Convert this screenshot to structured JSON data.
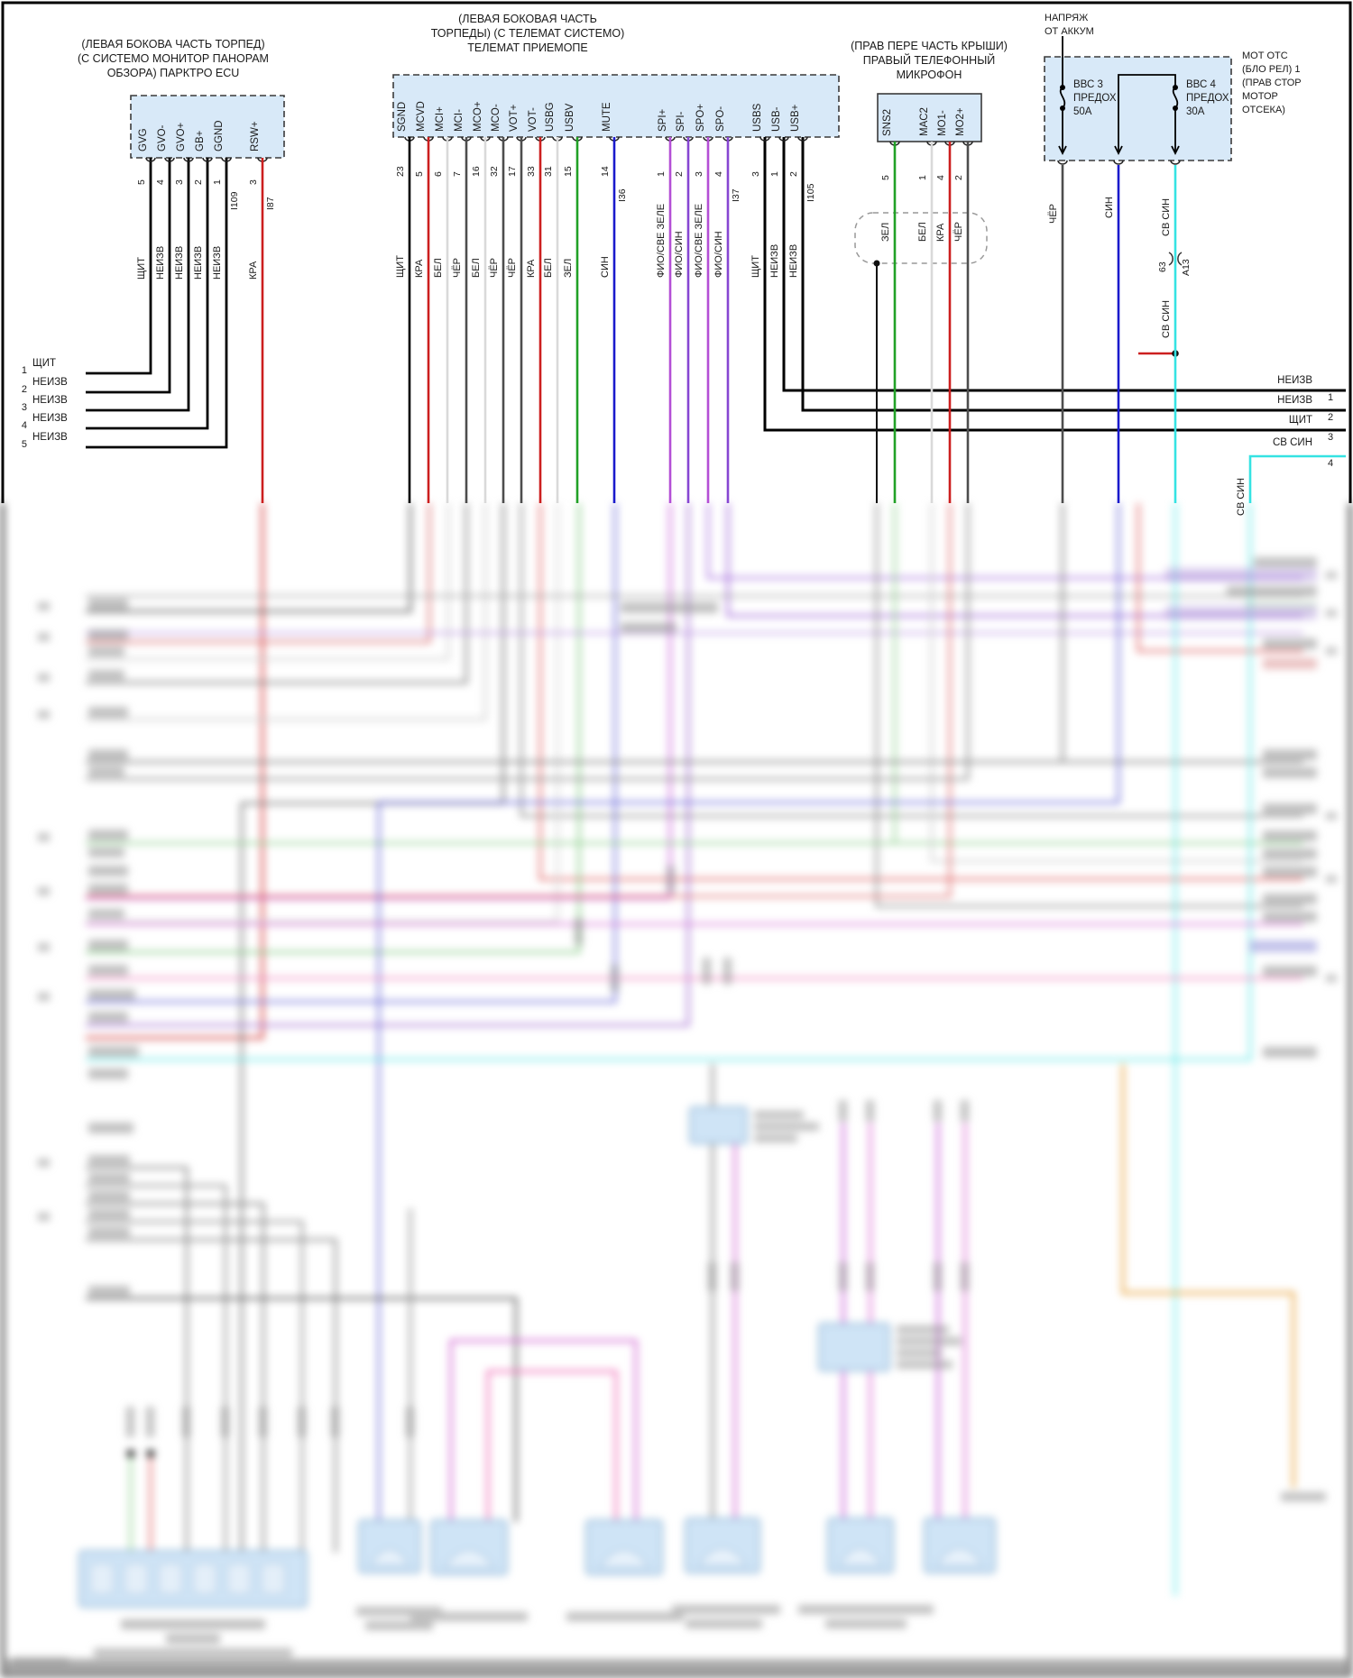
{
  "colors": {
    "wire_black": "#000000",
    "wire_red_KRA": "#cc1f1f",
    "wire_white_BEL": "#d9d9d9",
    "wire_darkgray_CHER": "#4d4d4d",
    "wire_green_ZEL": "#21a126",
    "wire_blue_SIN": "#1a1acc",
    "wire_cyan_SVSIN": "#35e3e3",
    "wire_violet_FIO_SVZEL": "#b44fd6",
    "wire_violet_FIO_SIN": "#8746d2",
    "connector_fill": "#d8e9f8",
    "connector_stroke": "#3a3a3a",
    "frame": "#000000"
  },
  "connectors": {
    "parktronic_ecu": {
      "title_lines": [
        "(ЛЕВАЯ БОКОВА ЧАСТЬ ТОРПЕД)",
        "(С СИСТЕМО МОНИТОР ПАНОРАМ",
        "ОБЗОРА) ПАРКТРО ECU"
      ],
      "pins": [
        {
          "name": "GVG",
          "number": "5",
          "wire": "ЩИТ"
        },
        {
          "name": "GVO-",
          "number": "4",
          "wire": "НЕИЗВ"
        },
        {
          "name": "GVO+",
          "number": "3",
          "wire": "НЕИЗВ"
        },
        {
          "name": "GB+",
          "number": "2",
          "wire": "НЕИЗВ"
        },
        {
          "name": "GGND",
          "number": "1",
          "wire": "НЕИЗВ",
          "connector_id": "I109"
        },
        {
          "name": "RSW+",
          "number": "3",
          "wire": "КРА",
          "connector_id": "I87"
        }
      ]
    },
    "telematics_receiver": {
      "title_lines": [
        "(ЛЕВАЯ БОКОВАЯ ЧАСТЬ",
        "ТОРПЕДЫ) (С ТЕЛЕМАТ СИСТЕМО)",
        "ТЕЛЕМАТ ПРИЕМОПЕ"
      ],
      "pins": [
        {
          "name": "SGND",
          "number": "23",
          "wire": "ЩИТ"
        },
        {
          "name": "MCVD",
          "number": "5",
          "wire": "КРА"
        },
        {
          "name": "MCI+",
          "number": "6",
          "wire": "БЕЛ"
        },
        {
          "name": "MCI-",
          "number": "7",
          "wire": "ЧЁР"
        },
        {
          "name": "MCO+",
          "number": "16",
          "wire": "БЕЛ"
        },
        {
          "name": "MCO-",
          "number": "32",
          "wire": "ЧЁР"
        },
        {
          "name": "VOT+",
          "number": "17",
          "wire": "ЧЁР"
        },
        {
          "name": "VOT-",
          "number": "33",
          "wire": "КРА"
        },
        {
          "name": "USBG",
          "number": "31",
          "wire": "БЕЛ"
        },
        {
          "name": "USBV",
          "number": "15",
          "wire": "ЗЕЛ"
        },
        {
          "name": "MUTE",
          "number": "14",
          "wire": "СИН",
          "connector_id": "I36"
        },
        {
          "name": "SPI+",
          "number": "1",
          "wire": "ФИО/СВЕ ЗЕЛЕ"
        },
        {
          "name": "SPI-",
          "number": "2",
          "wire": "ФИО/СИН"
        },
        {
          "name": "SPO+",
          "number": "3",
          "wire": "ФИО/СВЕ ЗЕЛЕ"
        },
        {
          "name": "SPO-",
          "number": "4",
          "wire": "ФИО/СИН",
          "connector_id": "I37"
        },
        {
          "name": "USBS",
          "number": "3",
          "wire": "ЩИТ"
        },
        {
          "name": "USB-",
          "number": "1",
          "wire": "НЕИЗВ"
        },
        {
          "name": "USB+",
          "number": "2",
          "wire": "НЕИЗВ",
          "connector_id": "I105"
        }
      ]
    },
    "right_phone_microphone": {
      "title_lines": [
        "(ПРАВ ПЕРЕ ЧАСТЬ КРЫШИ)",
        "ПРАВЫЙ ТЕЛЕФОННЫЙ",
        "МИКРОФОН"
      ],
      "pins": [
        {
          "name": "SNS2",
          "number": "5",
          "wire": "ЗЕЛ"
        },
        {
          "name": "MAC2",
          "number": "1",
          "wire": "БЕЛ"
        },
        {
          "name": "MO1-",
          "number": "4",
          "wire": "КРА"
        },
        {
          "name": "MO2+",
          "number": "2",
          "wire": "ЧЁР"
        }
      ]
    },
    "fuse_box": {
      "feed_label_lines": [
        "НАПРЯЖ",
        "ОТ АККУМ"
      ],
      "location_label_lines": [
        "МОТ ОТС",
        "(БЛО РЕЛ) 1",
        "(ПРАВ СТОР",
        "МОТОР",
        "ОТСЕКА)"
      ],
      "fuses": [
        {
          "name": "ВВС 3",
          "type": "ПРЕДОХ",
          "rating": "50А"
        },
        {
          "name": "ВВС 4",
          "type": "ПРЕДОХ",
          "rating": "30А"
        }
      ],
      "outputs": [
        {
          "wire": "ЧЁР"
        },
        {
          "wire": "СИН"
        },
        {
          "wire": "СВ СИН"
        }
      ]
    }
  },
  "inline_connector": {
    "pin": "63",
    "id": "А13",
    "wire_above": "СВ СИН",
    "wire_below": "СВ СИН"
  },
  "right_branch_vertical_label": "СВ СИН",
  "left_rows": [
    {
      "number": "1",
      "label": "ЩИТ"
    },
    {
      "number": "2",
      "label": "НЕИЗВ"
    },
    {
      "number": "3",
      "label": "НЕИЗВ"
    },
    {
      "number": "4",
      "label": "НЕИЗВ"
    },
    {
      "number": "5",
      "label": "НЕИЗВ"
    }
  ],
  "right_rows": [
    {
      "number": "1",
      "label": "НЕИЗВ"
    },
    {
      "number": "2",
      "label": "НЕИЗВ"
    },
    {
      "number": "3",
      "label": "ЩИТ"
    },
    {
      "number": "4",
      "label": "СВ СИН"
    }
  ]
}
